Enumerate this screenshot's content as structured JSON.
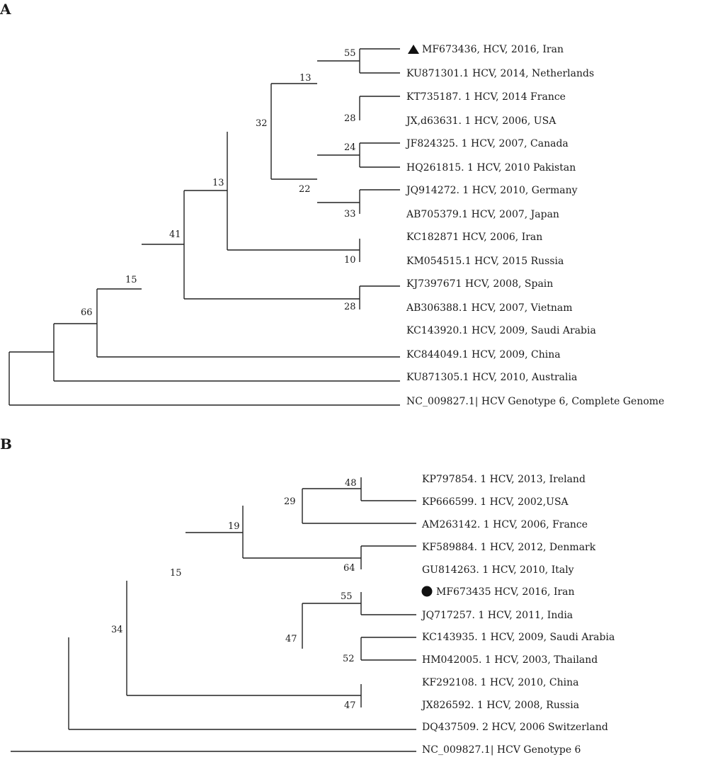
{
  "panels": {
    "a": {
      "letter": "A",
      "leaves": [
        "MF673436, HCV, 2016, Iran",
        "KU871301.1 HCV, 2014, Netherlands",
        "KT735187. 1 HCV, 2014 France",
        "JX,d63631. 1 HCV, 2006, USA",
        "JF824325. 1 HCV, 2007, Canada",
        "HQ261815. 1 HCV, 2010 Pakistan",
        "JQ914272. 1 HCV, 2010, Germany",
        "AB705379.1 HCV, 2007, Japan",
        "KC182871 HCV, 2006, Iran",
        "KM054515.1 HCV, 2015 Russia",
        "KJ7397671 HCV, 2008, Spain",
        "AB306388.1 HCV, 2007, Vietnam",
        "KC143920.1 HCV, 2009, Saudi Arabia",
        "KC844049.1 HCV, 2009, China",
        "KU871305.1 HCV, 2010, Australia",
        "NC_009827.1| HCV Genotype 6, Complete Genome"
      ],
      "bootstrap": [
        "55",
        "13",
        "32",
        "28",
        "24",
        "22",
        "33",
        "13",
        "41",
        "10",
        "15",
        "28",
        "66"
      ]
    },
    "b": {
      "letter": "B",
      "leaves": [
        "KP797854. 1 HCV, 2013, Ireland",
        "KP666599. 1 HCV, 2002,USA",
        "AM263142. 1 HCV, 2006, France",
        "KF589884. 1 HCV, 2012, Denmark",
        "GU814263. 1 HCV, 2010, Italy",
        "MF673435 HCV, 2016, Iran",
        "JQ717257. 1 HCV, 2011, India",
        "KC143935. 1 HCV, 2009, Saudi Arabia",
        "HM042005. 1 HCV,  2003, Thailand",
        "KF292108. 1 HCV, 2010, China",
        "JX826592. 1 HCV, 2008, Russia",
        "DQ437509. 2 HCV, 2006 Switzerland",
        "NC_009827.1| HCV Genotype 6"
      ],
      "bootstrap": [
        "48",
        "29",
        "19",
        "64",
        "15",
        "55",
        "34",
        "47",
        "52",
        "47"
      ]
    }
  },
  "markers": {
    "a": "triangle-marker",
    "b": "circle-marker"
  }
}
